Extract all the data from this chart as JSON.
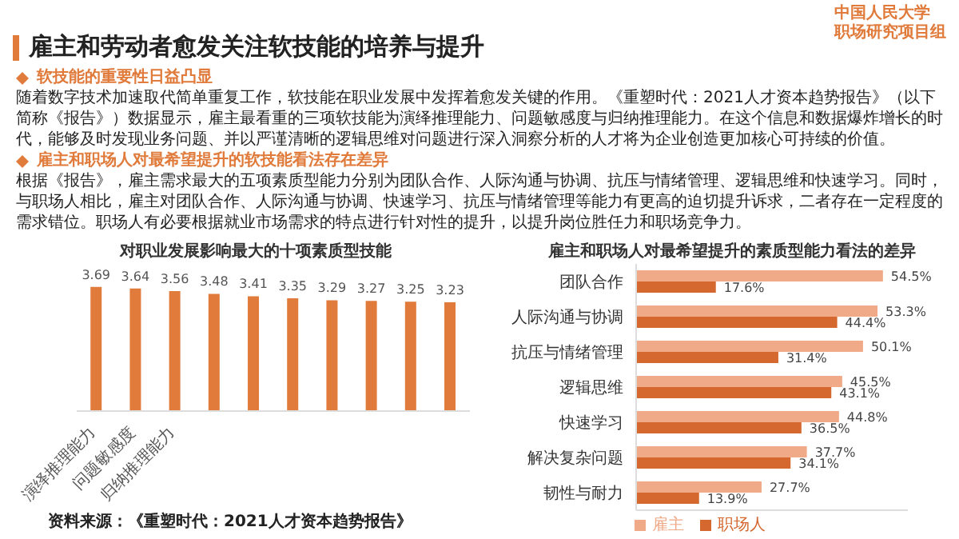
{
  "chart_data": [
    {
      "type": "other",
      "title": "雇主和劳动者愈发关注软技能的培养与提升",
      "annotations": [
        "中国人民大学",
        "职场研究项目组",
        "软技能的重要性日益凸显",
        "随着数字技术加速取代简单重复工作，软技能在职业发展中发挥着愈发关键的作用。《重塑时代：2021人才资本趋势报告》（以下简称《报告》）数据显示，雇主最看重的三项软技能为演绎推理能力、问题敏感度与归纳推理能力。在这个信息和数据爆炸增长的时代，能够及时发现业务问题、并以严谨清晰的逻辑思维对问题进行深入洞察分析的人才将为企业创造更加核心可持续的价值。",
        "雇主和职场人对最希望提升的软技能看法存在差异",
        "根据《报告》，雇主需求最大的五项素质型能力分别为团队合作、人际沟通与协调、抗压与情绪管理、逻辑思维和快速学习。同时，与职场人相比，雇主对团队合作、人际沟通与协调、快速学习、抗压与情绪管理等能力有更高的迫切提升诉求，二者存在一定程度的需求错位。职场人有必要根据就业市场需求的特点进行针对性的提升，以提升岗位胜任力和职场竞争力。"
      ]
    },
    {
      "type": "bar",
      "title": "对职业发展影响最大的十项素质型技能",
      "categories": [
        "演绎推理能力",
        "问题敏感度",
        "归纳推理能力",
        null,
        null,
        null,
        null,
        null,
        null,
        null
      ],
      "values": [
        3.69,
        3.64,
        3.56,
        3.48,
        3.41,
        3.35,
        3.29,
        3.27,
        3.25,
        3.23
      ],
      "color": "#e07b3c",
      "data_labels": true,
      "tick_labels": "x",
      "annotations": [
        "资料来源：《重塑时代：2021人才资本趋势报告》"
      ]
    },
    {
      "type": "bar",
      "orientation": "horizontal",
      "title": "雇主和职场人对最希望提升的素质型能力看法的差异",
      "categories": [
        "团队合作",
        "人际沟通与协调",
        "抗压与情绪管理",
        "逻辑思维",
        "快速学习",
        "解决复杂问题",
        "韧性与耐力"
      ],
      "series": [
        {
          "name": "雇主",
          "color": "#f0aa88",
          "values": [
            54.5,
            53.3,
            50.1,
            45.5,
            44.8,
            37.7,
            27.7
          ],
          "value_labels": [
            "54.5%",
            "53.3%",
            "50.1%",
            "45.5%",
            "44.8%",
            "37.7%",
            "27.7%"
          ]
        },
        {
          "name": "职场人",
          "color": "#d4682e",
          "values": [
            17.6,
            44.4,
            31.4,
            43.1,
            36.5,
            34.1,
            13.9
          ],
          "value_labels": [
            "17.6%",
            "44.4%",
            "31.4%",
            "43.1%",
            "36.5%",
            "34.1%",
            "13.9%"
          ]
        }
      ],
      "xlim": [
        0,
        60
      ],
      "tick_labels": "y",
      "legend": "bottom"
    }
  ]
}
